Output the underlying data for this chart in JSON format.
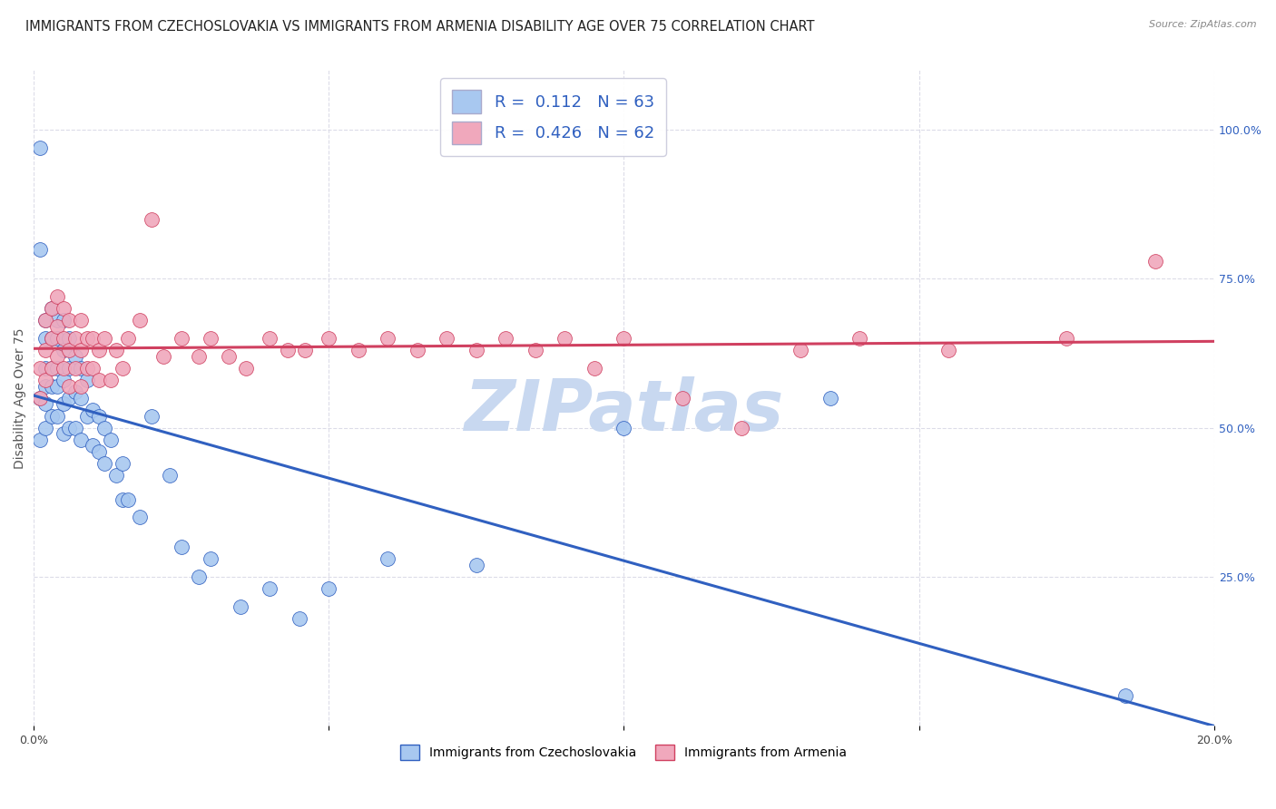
{
  "title": "IMMIGRANTS FROM CZECHOSLOVAKIA VS IMMIGRANTS FROM ARMENIA DISABILITY AGE OVER 75 CORRELATION CHART",
  "source": "Source: ZipAtlas.com",
  "ylabel": "Disability Age Over 75",
  "xlim": [
    0.0,
    0.2
  ],
  "ylim": [
    0.0,
    1.1
  ],
  "ytick_right_labels": [
    "100.0%",
    "75.0%",
    "50.0%",
    "25.0%"
  ],
  "ytick_right_values": [
    1.0,
    0.75,
    0.5,
    0.25
  ],
  "r_czech": 0.112,
  "n_czech": 63,
  "r_armenia": 0.426,
  "n_armenia": 62,
  "color_czech": "#A8C8F0",
  "color_armenia": "#F0A8BC",
  "color_line_czech": "#3060C0",
  "color_line_armenia": "#D04060",
  "background_color": "#FFFFFF",
  "watermark_color": "#C8D8F0",
  "czech_x": [
    0.001,
    0.001,
    0.001,
    0.001,
    0.002,
    0.002,
    0.002,
    0.002,
    0.002,
    0.002,
    0.003,
    0.003,
    0.003,
    0.003,
    0.003,
    0.004,
    0.004,
    0.004,
    0.004,
    0.004,
    0.005,
    0.005,
    0.005,
    0.005,
    0.005,
    0.006,
    0.006,
    0.006,
    0.006,
    0.007,
    0.007,
    0.007,
    0.008,
    0.008,
    0.008,
    0.009,
    0.009,
    0.01,
    0.01,
    0.011,
    0.011,
    0.012,
    0.012,
    0.013,
    0.014,
    0.015,
    0.015,
    0.016,
    0.018,
    0.02,
    0.023,
    0.025,
    0.028,
    0.03,
    0.035,
    0.04,
    0.045,
    0.05,
    0.06,
    0.075,
    0.1,
    0.135,
    0.185
  ],
  "czech_y": [
    0.97,
    0.8,
    0.55,
    0.48,
    0.68,
    0.65,
    0.6,
    0.57,
    0.54,
    0.5,
    0.7,
    0.65,
    0.6,
    0.57,
    0.52,
    0.68,
    0.65,
    0.6,
    0.57,
    0.52,
    0.68,
    0.63,
    0.58,
    0.54,
    0.49,
    0.65,
    0.6,
    0.55,
    0.5,
    0.62,
    0.56,
    0.5,
    0.6,
    0.55,
    0.48,
    0.58,
    0.52,
    0.53,
    0.47,
    0.52,
    0.46,
    0.5,
    0.44,
    0.48,
    0.42,
    0.44,
    0.38,
    0.38,
    0.35,
    0.52,
    0.42,
    0.3,
    0.25,
    0.28,
    0.2,
    0.23,
    0.18,
    0.23,
    0.28,
    0.27,
    0.5,
    0.55,
    0.05
  ],
  "armenia_x": [
    0.001,
    0.001,
    0.002,
    0.002,
    0.002,
    0.003,
    0.003,
    0.003,
    0.004,
    0.004,
    0.004,
    0.005,
    0.005,
    0.005,
    0.006,
    0.006,
    0.006,
    0.007,
    0.007,
    0.008,
    0.008,
    0.008,
    0.009,
    0.009,
    0.01,
    0.01,
    0.011,
    0.011,
    0.012,
    0.013,
    0.014,
    0.015,
    0.016,
    0.018,
    0.02,
    0.022,
    0.025,
    0.028,
    0.03,
    0.033,
    0.036,
    0.04,
    0.043,
    0.046,
    0.05,
    0.055,
    0.06,
    0.065,
    0.07,
    0.075,
    0.08,
    0.085,
    0.09,
    0.095,
    0.1,
    0.11,
    0.12,
    0.13,
    0.14,
    0.155,
    0.175,
    0.19
  ],
  "armenia_y": [
    0.6,
    0.55,
    0.68,
    0.63,
    0.58,
    0.7,
    0.65,
    0.6,
    0.72,
    0.67,
    0.62,
    0.7,
    0.65,
    0.6,
    0.68,
    0.63,
    0.57,
    0.65,
    0.6,
    0.68,
    0.63,
    0.57,
    0.65,
    0.6,
    0.65,
    0.6,
    0.63,
    0.58,
    0.65,
    0.58,
    0.63,
    0.6,
    0.65,
    0.68,
    0.85,
    0.62,
    0.65,
    0.62,
    0.65,
    0.62,
    0.6,
    0.65,
    0.63,
    0.63,
    0.65,
    0.63,
    0.65,
    0.63,
    0.65,
    0.63,
    0.65,
    0.63,
    0.65,
    0.6,
    0.65,
    0.55,
    0.5,
    0.63,
    0.65,
    0.63,
    0.65,
    0.78
  ],
  "grid_color": "#DCDCE8",
  "title_fontsize": 10.5,
  "axis_fontsize": 10,
  "tick_fontsize": 9
}
